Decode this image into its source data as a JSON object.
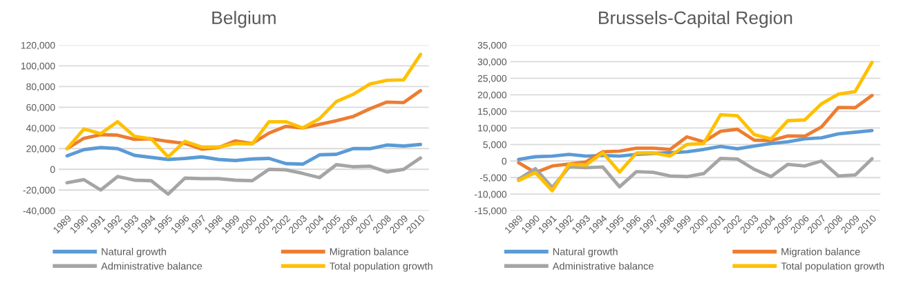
{
  "chart_data": [
    {
      "type": "line",
      "title": "Belgium",
      "categories": [
        "1989",
        "1990",
        "1991",
        "1992",
        "1993",
        "1994",
        "1995",
        "1996",
        "1997",
        "1998",
        "1999",
        "2000",
        "2001",
        "2002",
        "2003",
        "2004",
        "2005",
        "2006",
        "2007",
        "2008",
        "2009",
        "2010"
      ],
      "series": [
        {
          "name": "Natural growth",
          "color": "#5b9bd5",
          "values": [
            13000,
            19000,
            21000,
            20000,
            13500,
            11500,
            9500,
            10500,
            12000,
            9500,
            8500,
            10000,
            10500,
            5500,
            5000,
            14000,
            14500,
            20000,
            20000,
            23500,
            22500,
            24000
          ]
        },
        {
          "name": "Migration balance",
          "color": "#ed7d31",
          "values": [
            20000,
            30000,
            33500,
            33000,
            29000,
            29500,
            27000,
            25000,
            19500,
            21000,
            27500,
            25000,
            35000,
            41500,
            40000,
            43500,
            47000,
            51000,
            58500,
            65000,
            64500,
            76000
          ]
        },
        {
          "name": "Administrative balance",
          "color": "#a5a5a5",
          "values": [
            -13000,
            -10000,
            -20000,
            -7000,
            -10500,
            -11000,
            -24000,
            -8500,
            -9000,
            -9000,
            -10500,
            -11000,
            0,
            -500,
            -4000,
            -8000,
            4500,
            2500,
            3000,
            -2500,
            0,
            11000
          ]
        },
        {
          "name": "Total population growth",
          "color": "#ffc000",
          "values": [
            20000,
            39000,
            34500,
            46000,
            32000,
            29500,
            12000,
            27000,
            21500,
            21500,
            25000,
            24500,
            46000,
            46000,
            40000,
            49000,
            65500,
            72500,
            82500,
            86000,
            86500,
            111000
          ]
        }
      ],
      "ylim": [
        -40000,
        120000
      ],
      "yticks": [
        {
          "value": -40000,
          "label": "-40,000"
        },
        {
          "value": -20000,
          "label": "-20,000"
        },
        0,
        {
          "value": 20000,
          "label": "20,000"
        },
        {
          "value": 40000,
          "label": "40,000"
        },
        {
          "value": 60000,
          "label": "60,000"
        },
        {
          "value": 80000,
          "label": "80,000"
        },
        {
          "value": 100000,
          "label": "100,000"
        },
        {
          "value": 120000,
          "label": "120,000"
        }
      ],
      "grid": "y",
      "legend": "bottom",
      "marker": "none",
      "line_style": "solid"
    },
    {
      "type": "line",
      "title": "Brussels-Capital Region",
      "categories": [
        "1989",
        "1990",
        "1991",
        "1992",
        "1993",
        "1994",
        "1995",
        "1996",
        "1997",
        "1998",
        "1999",
        "2000",
        "2001",
        "2002",
        "2003",
        "2004",
        "2005",
        "2006",
        "2007",
        "2008",
        "2009",
        "2010"
      ],
      "series": [
        {
          "name": "Natural growth",
          "color": "#5b9bd5",
          "values": [
            500,
            1300,
            1500,
            2000,
            1500,
            1700,
            1500,
            2000,
            2300,
            2500,
            2800,
            3500,
            4400,
            3700,
            4500,
            5300,
            5800,
            6700,
            7000,
            8200,
            8700,
            9200
          ]
        },
        {
          "name": "Migration balance",
          "color": "#ed7d31",
          "values": [
            -500,
            -3500,
            -1500,
            -900,
            -300,
            2800,
            3000,
            3900,
            3900,
            3500,
            7300,
            5800,
            9000,
            9600,
            6300,
            6200,
            7600,
            7500,
            10300,
            16200,
            16100,
            19800
          ]
        },
        {
          "name": "Administrative balance",
          "color": "#a5a5a5",
          "values": [
            -5500,
            -2300,
            -8000,
            -1800,
            -2000,
            -1800,
            -7800,
            -3200,
            -3400,
            -4500,
            -4700,
            -3800,
            800,
            600,
            -2500,
            -4700,
            -1000,
            -1500,
            0,
            -4500,
            -4200,
            700
          ]
        },
        {
          "name": "Total population growth",
          "color": "#ffc000",
          "values": [
            -5900,
            -3500,
            -9000,
            -1000,
            -1200,
            2500,
            -3300,
            2400,
            2500,
            1500,
            5000,
            5300,
            14000,
            13700,
            8000,
            6700,
            12200,
            12400,
            17300,
            20200,
            21000,
            29800
          ]
        }
      ],
      "ylim": [
        -15000,
        35000
      ],
      "yticks": [
        {
          "value": -15000,
          "label": "-15,000"
        },
        {
          "value": -10000,
          "label": "-10,000"
        },
        {
          "value": -5000,
          "label": "-5,000"
        },
        0,
        {
          "value": 5000,
          "label": "5,000"
        },
        {
          "value": 10000,
          "label": "10,000"
        },
        {
          "value": 15000,
          "label": "15,000"
        },
        {
          "value": 20000,
          "label": "20,000"
        },
        {
          "value": 25000,
          "label": "25,000"
        },
        {
          "value": 30000,
          "label": "30,000"
        },
        {
          "value": 35000,
          "label": "35,000"
        }
      ],
      "grid": "y",
      "legend": "bottom",
      "marker": "none",
      "line_style": "solid"
    }
  ]
}
